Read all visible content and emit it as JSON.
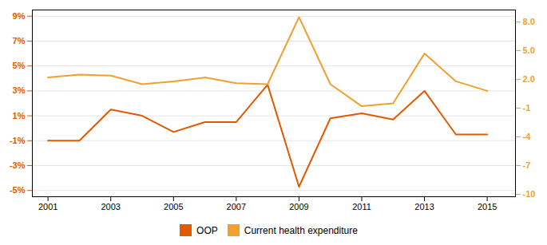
{
  "chart_data": {
    "type": "line",
    "x": [
      2001,
      2002,
      2003,
      2004,
      2005,
      2006,
      2007,
      2008,
      2009,
      2010,
      2011,
      2012,
      2013,
      2014,
      2015
    ],
    "xlim": [
      2000.5,
      2015.9
    ],
    "xticks": [
      2001,
      2003,
      2005,
      2007,
      2009,
      2011,
      2013,
      2015
    ],
    "ylim": [
      -5.5,
      9.5
    ],
    "yticks": [
      {
        "value": -5,
        "label": "-5%"
      },
      {
        "value": -3,
        "label": "-3%"
      },
      {
        "value": -1,
        "label": "-1%"
      },
      {
        "value": 1,
        "label": "1%"
      },
      {
        "value": 3,
        "label": "3%"
      },
      {
        "value": 5,
        "label": "5%"
      },
      {
        "value": 7,
        "label": "7%"
      },
      {
        "value": 9,
        "label": "9%"
      }
    ],
    "y2lim": [
      -10.25,
      9.25
    ],
    "y2ticks": [
      -10,
      -7,
      -4,
      -1,
      {
        "value": 2,
        "label": "2.0"
      },
      {
        "value": 5,
        "label": "5.0"
      },
      {
        "value": 8,
        "label": "8.0"
      }
    ],
    "grid": true,
    "legend": "bottom",
    "series": [
      {
        "name": "OOP",
        "color": "#e05a00",
        "values": [
          -1.0,
          -1.0,
          1.5,
          1.0,
          -0.3,
          0.5,
          0.5,
          3.5,
          -4.7,
          0.8,
          1.2,
          0.7,
          3.0,
          -0.5,
          -0.5
        ]
      },
      {
        "name": "Current health expenditure",
        "color": "#f0a030",
        "axis": "y2",
        "values": [
          2.2,
          2.5,
          2.4,
          1.5,
          1.8,
          2.2,
          1.6,
          1.5,
          8.5,
          1.5,
          -0.8,
          -0.5,
          4.7,
          1.8,
          0.8
        ]
      }
    ]
  }
}
